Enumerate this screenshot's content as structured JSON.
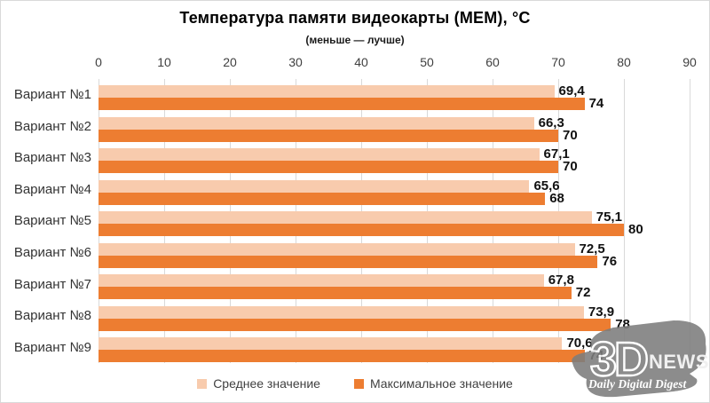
{
  "chart_data": {
    "type": "bar",
    "orientation": "horizontal",
    "title": "Температура памяти видеокарты (MEM), °C",
    "subtitle": "(меньше — лучше)",
    "categories": [
      "Вариант №1",
      "Вариант №2",
      "Вариант №3",
      "Вариант №4",
      "Вариант №5",
      "Вариант №6",
      "Вариант №7",
      "Вариант №8",
      "Вариант №9"
    ],
    "series": [
      {
        "name": "Среднее значение",
        "color": "#F8CBAD",
        "values": [
          69.4,
          66.3,
          67.1,
          65.6,
          75.1,
          72.5,
          67.8,
          73.9,
          70.6
        ]
      },
      {
        "name": "Максимальное значение",
        "color": "#ED7D31",
        "values": [
          74,
          70,
          70,
          68,
          80,
          76,
          72,
          78,
          74
        ]
      }
    ],
    "x_ticks": [
      0,
      10,
      20,
      30,
      40,
      50,
      60,
      70,
      80,
      90
    ],
    "xlim": [
      0,
      90
    ],
    "grid": true,
    "gridline_color": "#d9d9d9",
    "legend_position": "bottom",
    "decimal_separator": ","
  },
  "watermark": {
    "logo": "3D",
    "name": "NEWS",
    "tagline": "Daily Digital Digest"
  }
}
